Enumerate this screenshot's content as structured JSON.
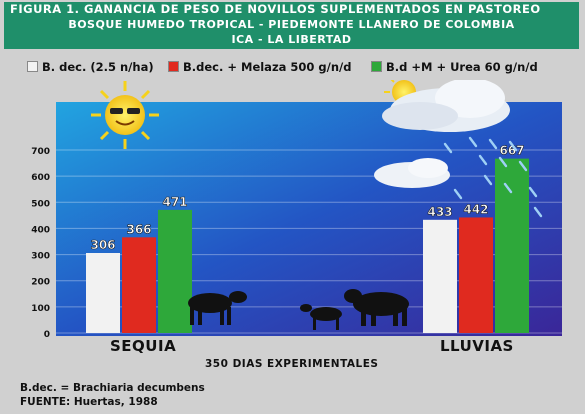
{
  "header": {
    "line1": "FIGURA 1. GANANCIA DE PESO DE NOVILLOS SUPLEMENTADOS EN PASTOREO",
    "line2": "BOSQUE HUMEDO TROPICAL - PIEDEMONTE LLANERO DE COLOMBIA",
    "line3": "ICA - LA LIBERTAD"
  },
  "footer": {
    "note1": "B.dec. = Brachiaria decumbens",
    "note2": "FUENTE: Huertas, 1988"
  },
  "colors": {
    "header": "#1f8f6a",
    "plot_top": "#1b8fd6",
    "plot_bottom": "#3a2fa0"
  },
  "chart_data": {
    "type": "bar",
    "categories": [
      "SEQUIA",
      "LLUVIAS"
    ],
    "series": [
      {
        "name": "B. dec. (2.5 n/ha)",
        "color": "#f2f2f2",
        "values": [
          306,
          433
        ]
      },
      {
        "name": "B.dec. + Melaza 500 g/n/d",
        "color": "#e02a1f",
        "values": [
          366,
          442
        ]
      },
      {
        "name": "B.d +M + Urea 60 g/n/d",
        "color": "#2ea83a",
        "values": [
          471,
          667
        ]
      }
    ],
    "data_labels": [
      [
        "306",
        "433"
      ],
      [
        "366",
        "442"
      ],
      [
        "471",
        "667"
      ]
    ],
    "title": "",
    "xlabel": "350 DIAS EXPERIMENTALES",
    "ylabel": "",
    "ylim": [
      0,
      700
    ],
    "yticks": [
      "0",
      "100",
      "200",
      "300",
      "400",
      "500",
      "600",
      "700"
    ],
    "grid": true,
    "legend": "top"
  }
}
